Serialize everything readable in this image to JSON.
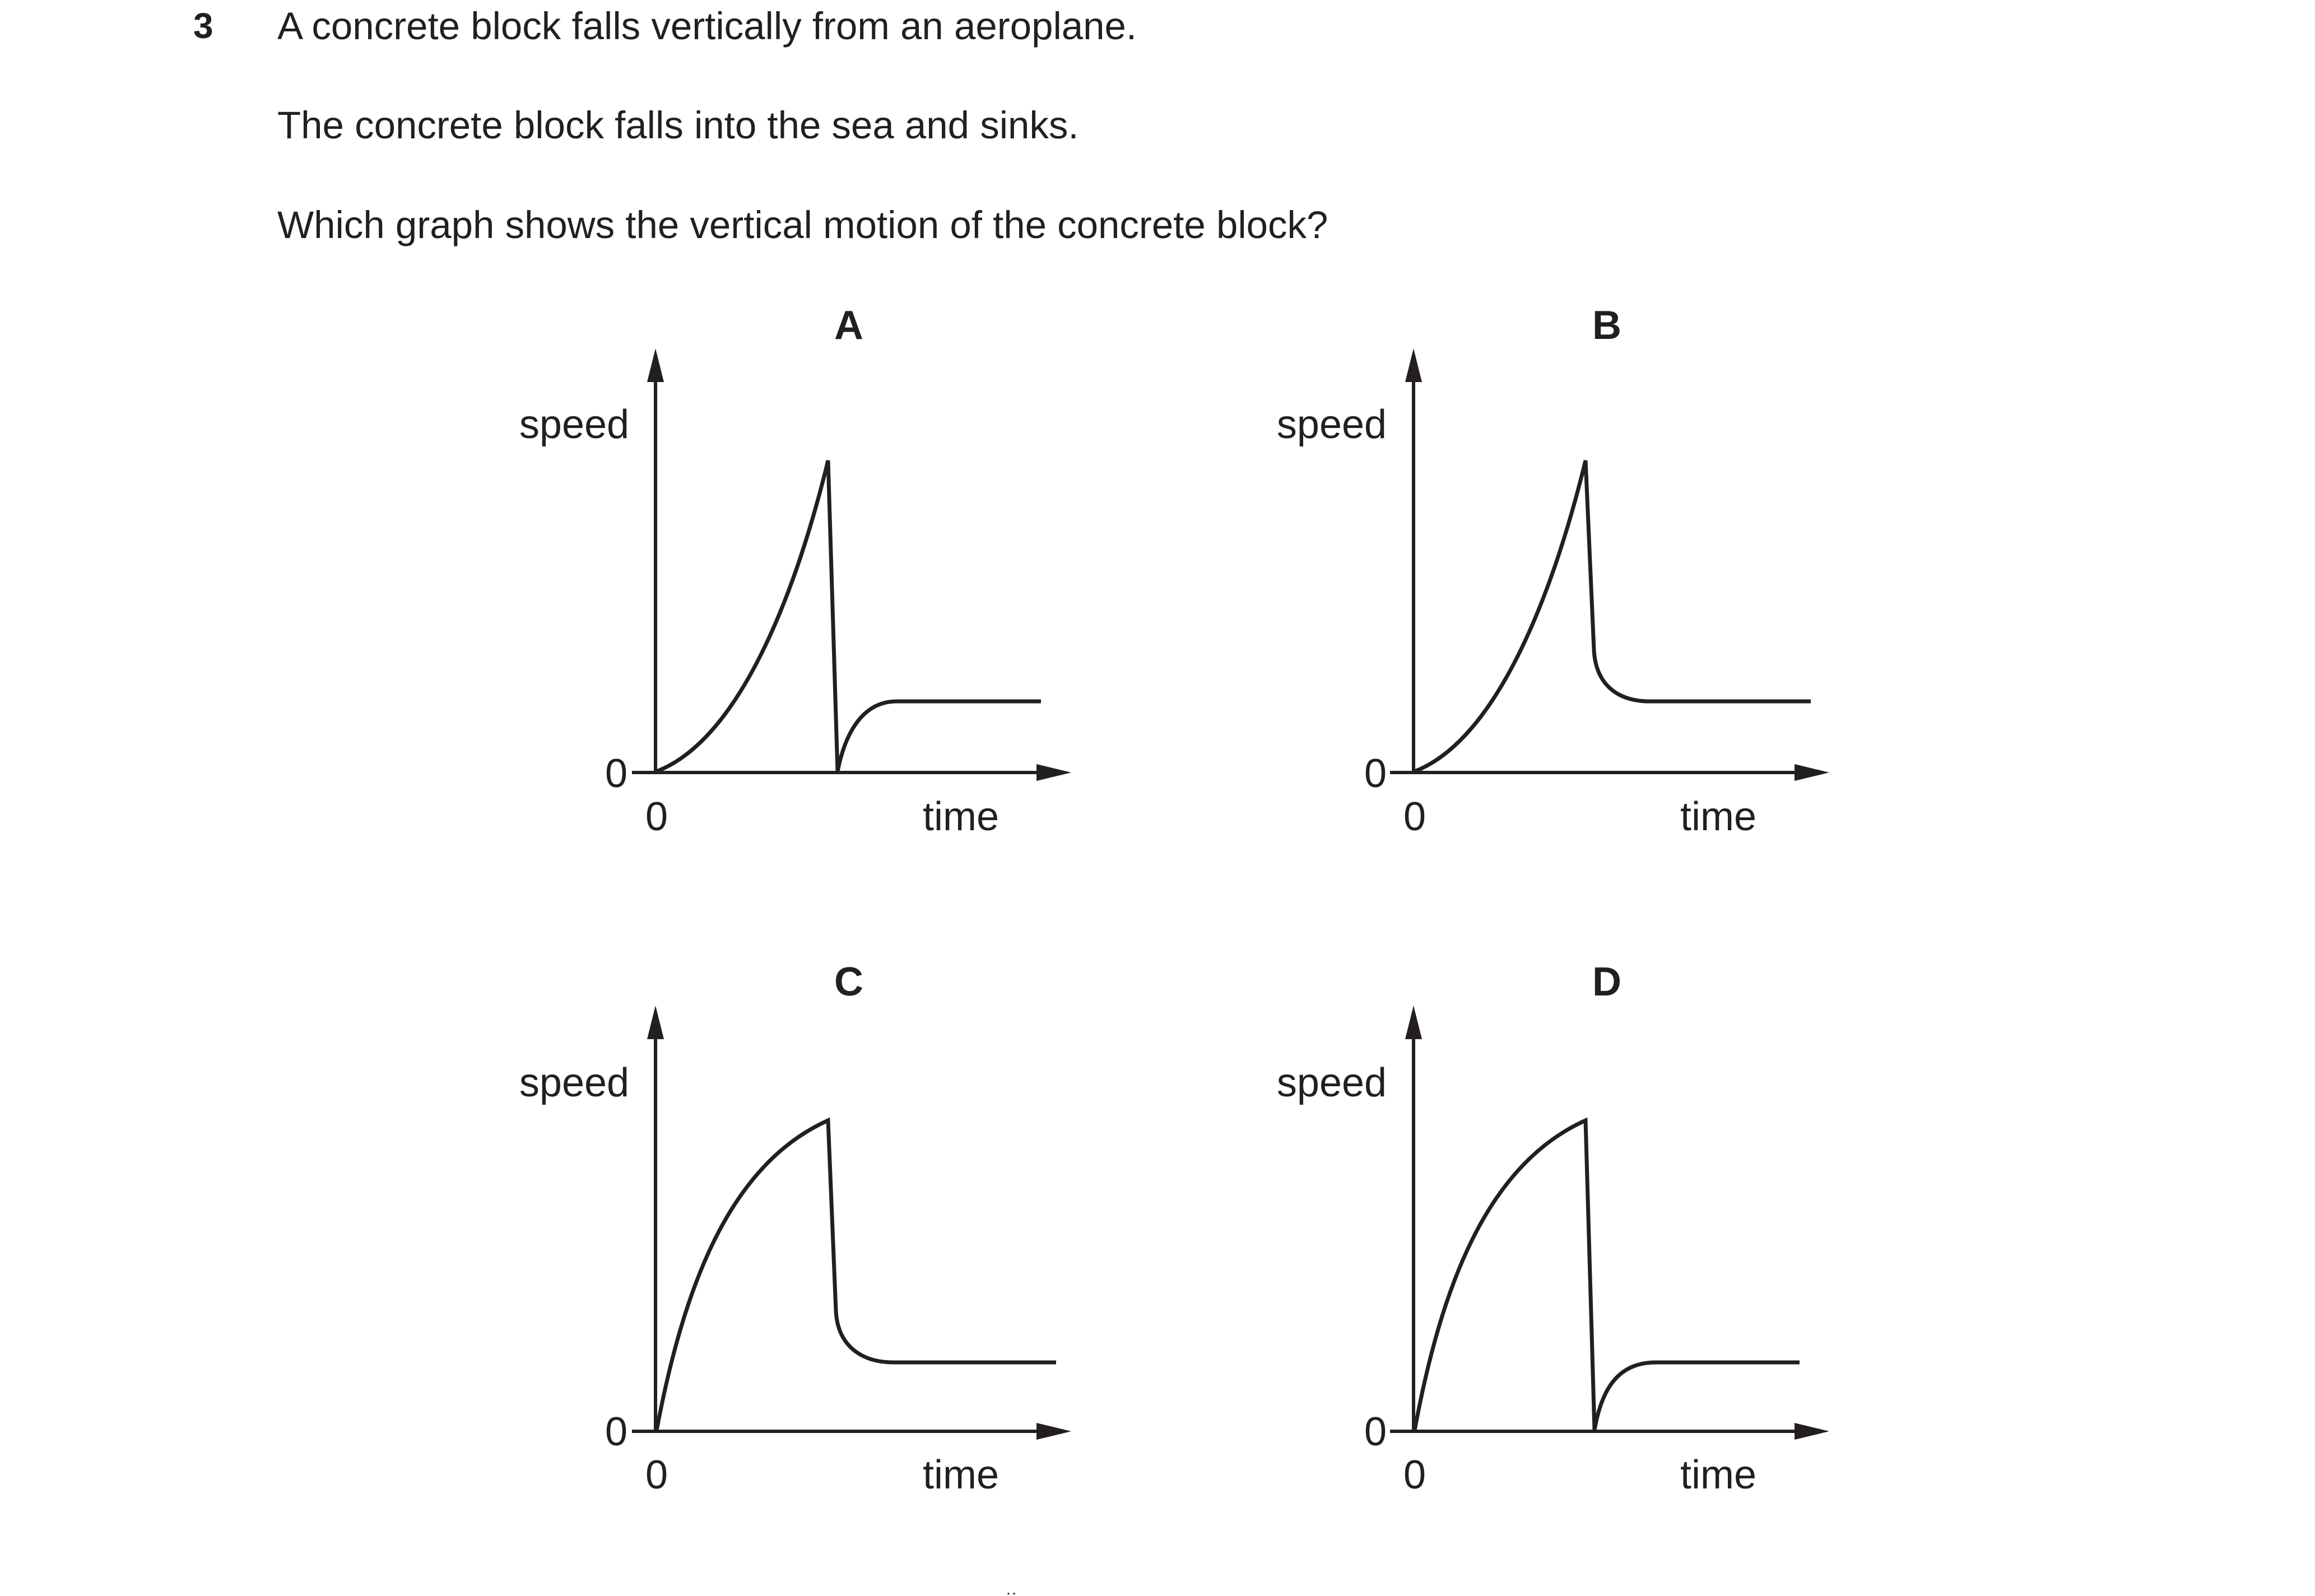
{
  "question": {
    "number": "3",
    "lines": [
      "A concrete block falls vertically from an aeroplane.",
      "The concrete block falls into the sea and sinks.",
      "Which graph shows the vertical motion of the concrete block?"
    ]
  },
  "graphs": [
    {
      "id": "A",
      "ylabel": "speed",
      "xlabel": "time",
      "origin_x": "0",
      "origin_y": "0"
    },
    {
      "id": "B",
      "ylabel": "speed",
      "xlabel": "time",
      "origin_x": "0",
      "origin_y": "0"
    },
    {
      "id": "C",
      "ylabel": "speed",
      "xlabel": "time",
      "origin_x": "0",
      "origin_y": "0"
    },
    {
      "id": "D",
      "ylabel": "speed",
      "xlabel": "time",
      "origin_x": "0",
      "origin_y": "0"
    }
  ]
}
